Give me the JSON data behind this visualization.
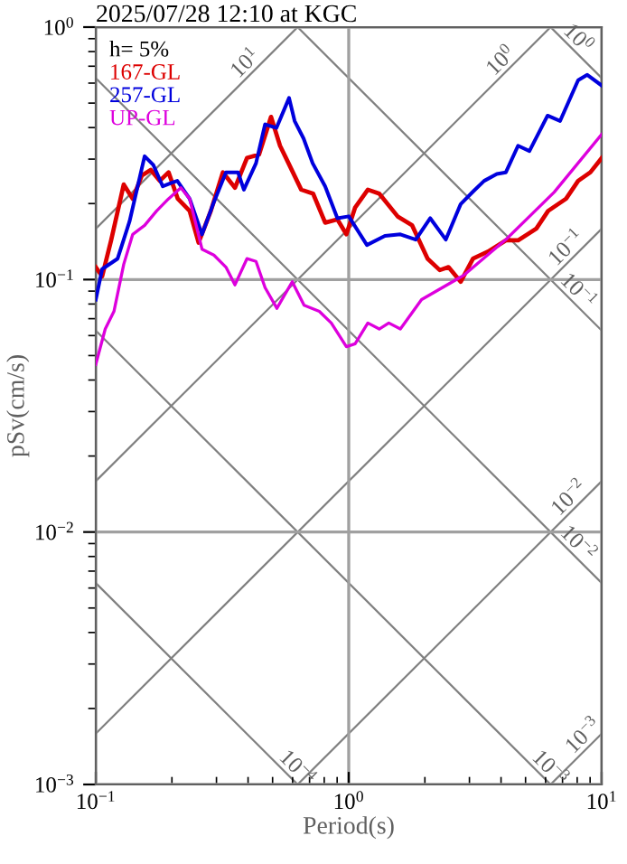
{
  "chart_data": {
    "type": "line",
    "title": "2025/07/28 12:10 at KGC",
    "xlabel": "Period(s)",
    "ylabel": "pSv(cm/s)",
    "legend_title": "h= 5%",
    "legend": "top left",
    "log": "xy",
    "grid": true,
    "xlim": [
      0.1,
      10
    ],
    "ylim": [
      0.001,
      1
    ],
    "xticks": [
      {
        "value": 0.1,
        "label": "10$^{−1}$"
      },
      {
        "value": 1,
        "label": "10$^{0}$"
      },
      {
        "value": 10,
        "label": "10$^{1}$"
      }
    ],
    "yticks": [
      {
        "value": 0.001,
        "label": "10$^{−3}$"
      },
      {
        "value": 0.01,
        "label": "10$^{−2}$"
      },
      {
        "value": 0.1,
        "label": "10$^{−1}$"
      },
      {
        "value": 1,
        "label": "10$^{0}$"
      }
    ],
    "series": [
      {
        "color": "#808080",
        "x": [
          0.1,
          0.628
        ],
        "values": [
          0.159,
          1
        ]
      },
      {
        "color": "#808080",
        "x": [
          0.1,
          6.28
        ],
        "values": [
          0.0159,
          1
        ]
      },
      {
        "color": "#808080",
        "x": [
          0.1,
          10
        ],
        "values": [
          0.00159,
          0.159
        ]
      },
      {
        "color": "#808080",
        "x": [
          0.628,
          10
        ],
        "values": [
          0.001,
          0.0159
        ]
      },
      {
        "color": "#808080",
        "x": [
          6.28,
          10
        ],
        "values": [
          0.001,
          0.00159
        ]
      },
      {
        "color": "#808080",
        "x": [
          6.28,
          10
        ],
        "values": [
          1,
          0.628
        ]
      },
      {
        "color": "#808080",
        "x": [
          0.628,
          10
        ],
        "values": [
          1,
          0.0628
        ]
      },
      {
        "color": "#808080",
        "x": [
          0.1,
          10
        ],
        "values": [
          0.628,
          0.00628
        ]
      },
      {
        "color": "#808080",
        "x": [
          0.1,
          6.28
        ],
        "values": [
          0.0628,
          0.001
        ]
      },
      {
        "color": "#808080",
        "x": [
          0.1,
          0.628
        ],
        "values": [
          0.00628,
          0.001
        ]
      },
      {
        "name": "167-GL",
        "color": "#dd0000",
        "x": [
          0.1,
          0.106,
          0.115,
          0.129,
          0.14,
          0.152,
          0.165,
          0.179,
          0.194,
          0.211,
          0.235,
          0.255,
          0.285,
          0.318,
          0.355,
          0.396,
          0.442,
          0.493,
          0.535,
          0.565,
          0.649,
          0.723,
          0.807,
          0.902,
          0.979,
          1.06,
          1.19,
          1.32,
          1.56,
          1.78,
          2.05,
          2.29,
          2.48,
          2.77,
          3.1,
          3.55,
          4.18,
          4.67,
          5.51,
          6.14,
          7.23,
          8.07,
          9.02,
          10
        ],
        "values": [
          0.112,
          0.103,
          0.143,
          0.238,
          0.209,
          0.258,
          0.272,
          0.246,
          0.266,
          0.209,
          0.187,
          0.14,
          0.187,
          0.266,
          0.231,
          0.303,
          0.313,
          0.441,
          0.339,
          0.303,
          0.227,
          0.219,
          0.168,
          0.173,
          0.151,
          0.193,
          0.227,
          0.219,
          0.178,
          0.164,
          0.121,
          0.109,
          0.112,
          0.098,
          0.121,
          0.129,
          0.143,
          0.143,
          0.159,
          0.187,
          0.209,
          0.246,
          0.266,
          0.303
        ]
      },
      {
        "name": "257-GL",
        "color": "#0000dd",
        "x": [
          0.1,
          0.106,
          0.122,
          0.136,
          0.156,
          0.169,
          0.184,
          0.2,
          0.21,
          0.235,
          0.263,
          0.291,
          0.327,
          0.365,
          0.385,
          0.43,
          0.467,
          0.518,
          0.581,
          0.611,
          0.663,
          0.72,
          0.807,
          0.902,
          1.0,
          1.18,
          1.39,
          1.6,
          1.84,
          2.1,
          2.42,
          2.77,
          3.1,
          3.43,
          3.85,
          4.18,
          4.67,
          5.18,
          6.11,
          6.85,
          8.07,
          8.77,
          10
        ],
        "values": [
          0.0833,
          0.11,
          0.121,
          0.17,
          0.308,
          0.284,
          0.234,
          0.242,
          0.246,
          0.209,
          0.151,
          0.199,
          0.266,
          0.266,
          0.227,
          0.289,
          0.412,
          0.399,
          0.524,
          0.425,
          0.362,
          0.289,
          0.234,
          0.175,
          0.178,
          0.137,
          0.149,
          0.151,
          0.144,
          0.175,
          0.144,
          0.199,
          0.223,
          0.246,
          0.262,
          0.266,
          0.339,
          0.323,
          0.446,
          0.425,
          0.616,
          0.647,
          0.587
        ]
      },
      {
        "name": "UP-GL",
        "color": "#dd00dd",
        "x": [
          0.1,
          0.109,
          0.118,
          0.129,
          0.14,
          0.156,
          0.174,
          0.194,
          0.217,
          0.235,
          0.248,
          0.263,
          0.293,
          0.327,
          0.355,
          0.396,
          0.43,
          0.467,
          0.52,
          0.598,
          0.666,
          0.765,
          0.853,
          0.979,
          1.06,
          1.19,
          1.32,
          1.44,
          1.6,
          1.94,
          2.85,
          4.18,
          6.49,
          10
        ],
        "values": [
          0.0461,
          0.0637,
          0.0748,
          0.115,
          0.151,
          0.164,
          0.187,
          0.209,
          0.231,
          0.209,
          0.168,
          0.132,
          0.125,
          0.112,
          0.0953,
          0.121,
          0.118,
          0.0929,
          0.0769,
          0.098,
          0.0791,
          0.0748,
          0.0673,
          0.0542,
          0.0557,
          0.0673,
          0.0637,
          0.0673,
          0.0637,
          0.0833,
          0.104,
          0.144,
          0.222,
          0.376
        ]
      }
    ],
    "annotations": [
      {
        "text": "10$^{1}$",
        "x": 0.42,
        "y": 0.668
      },
      {
        "text": "10$^{0}$",
        "x": 4.3,
        "y": 0.684
      },
      {
        "text": "10$^{0}$",
        "x": 7.5,
        "y": 0.838
      },
      {
        "text": "10$^{−1}$",
        "x": 7.8,
        "y": 0.124
      },
      {
        "text": "10$^{−1}$",
        "x": 7.5,
        "y": 0.0838
      },
      {
        "text": "10$^{−2}$",
        "x": 8.0,
        "y": 0.0127
      },
      {
        "text": "10$^{−2}$",
        "x": 7.5,
        "y": 0.00838
      },
      {
        "text": "10$^{−3}$",
        "x": 9.1,
        "y": 0.00145
      },
      {
        "text": "10$^{−3}$",
        "x": 5.8,
        "y": 0.00108
      },
      {
        "text": "10$^{−4}$",
        "x": 0.58,
        "y": 0.00108
      }
    ]
  }
}
